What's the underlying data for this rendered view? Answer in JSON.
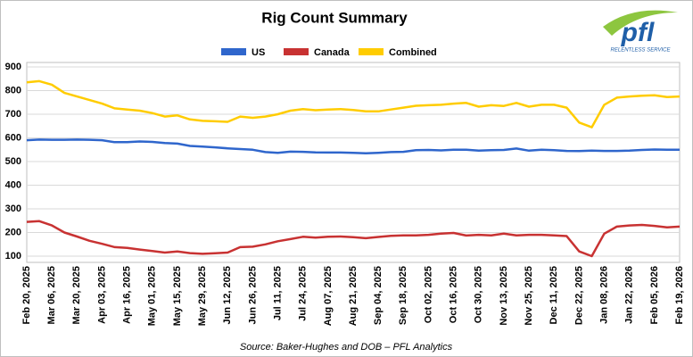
{
  "chart_data": {
    "type": "line",
    "title": "Rig Count Summary",
    "source": "Source: Baker-Hughes and DOB – PFL Analytics",
    "logo": {
      "text": "pfl",
      "tagline": "RELENTLESS SERVICE"
    },
    "categories": [
      "Feb 20, 2025",
      null,
      "Mar 06, 2025",
      null,
      "Mar 20, 2025",
      null,
      "Apr 03, 2025",
      null,
      "Apr 16, 2025",
      null,
      "May 01, 2025",
      null,
      "May 15, 2025",
      null,
      "May 29, 2025",
      null,
      "Jun 12, 2025",
      null,
      "Jun 26, 2025",
      null,
      "Jul 11, 2025",
      null,
      "Jul 24, 2025",
      null,
      "Aug 07, 2025",
      null,
      "Aug 21, 2025",
      null,
      "Sep 04, 2025",
      null,
      "Sep 18, 2025",
      null,
      "Oct 02, 2025",
      null,
      "Oct 16, 2025",
      null,
      "Oct 30, 2025",
      null,
      "Nov 13, 2025",
      null,
      "Nov 25, 2025",
      null,
      "Dec 11, 2025",
      null,
      "Dec 22, 2025",
      null,
      "Jan 08, 2026",
      null,
      "Jan 22, 2026",
      null,
      "Feb 05, 2026",
      null,
      "Feb 19, 2026"
    ],
    "series": [
      {
        "name": "US",
        "color": "#2f66cc",
        "values": [
          590,
          593,
          592,
          592,
          593,
          592,
          590,
          582,
          582,
          585,
          583,
          578,
          576,
          566,
          563,
          560,
          556,
          553,
          550,
          540,
          537,
          542,
          541,
          539,
          538,
          538,
          537,
          535,
          537,
          540,
          541,
          548,
          549,
          547,
          550,
          550,
          546,
          548,
          549,
          555,
          546,
          550,
          548,
          545,
          544,
          546,
          545,
          545,
          546,
          549,
          551,
          550,
          550
        ]
      },
      {
        "name": "Canada",
        "color": "#c83232",
        "values": [
          245,
          248,
          230,
          200,
          183,
          165,
          152,
          138,
          135,
          128,
          122,
          115,
          120,
          113,
          110,
          112,
          115,
          138,
          140,
          150,
          163,
          172,
          182,
          178,
          182,
          183,
          180,
          176,
          181,
          186,
          188,
          188,
          190,
          195,
          198,
          187,
          190,
          188,
          195,
          188,
          190,
          190,
          188,
          185,
          120,
          100,
          195,
          225,
          230,
          232,
          228,
          222,
          225
        ]
      },
      {
        "name": "Combined",
        "color": "#ffcc00",
        "values": [
          835,
          840,
          825,
          790,
          775,
          760,
          745,
          725,
          720,
          715,
          705,
          690,
          695,
          678,
          672,
          670,
          668,
          690,
          685,
          690,
          700,
          715,
          722,
          717,
          720,
          722,
          718,
          712,
          712,
          720,
          728,
          736,
          738,
          740,
          745,
          748,
          732,
          738,
          735,
          748,
          732,
          740,
          740,
          728,
          665,
          645,
          740,
          770,
          775,
          778,
          780,
          773,
          775
        ]
      }
    ],
    "ylim": [
      100,
      900
    ],
    "yticks": [
      100,
      200,
      300,
      400,
      500,
      600,
      700,
      800,
      900
    ],
    "grid": true,
    "legend": "top"
  }
}
